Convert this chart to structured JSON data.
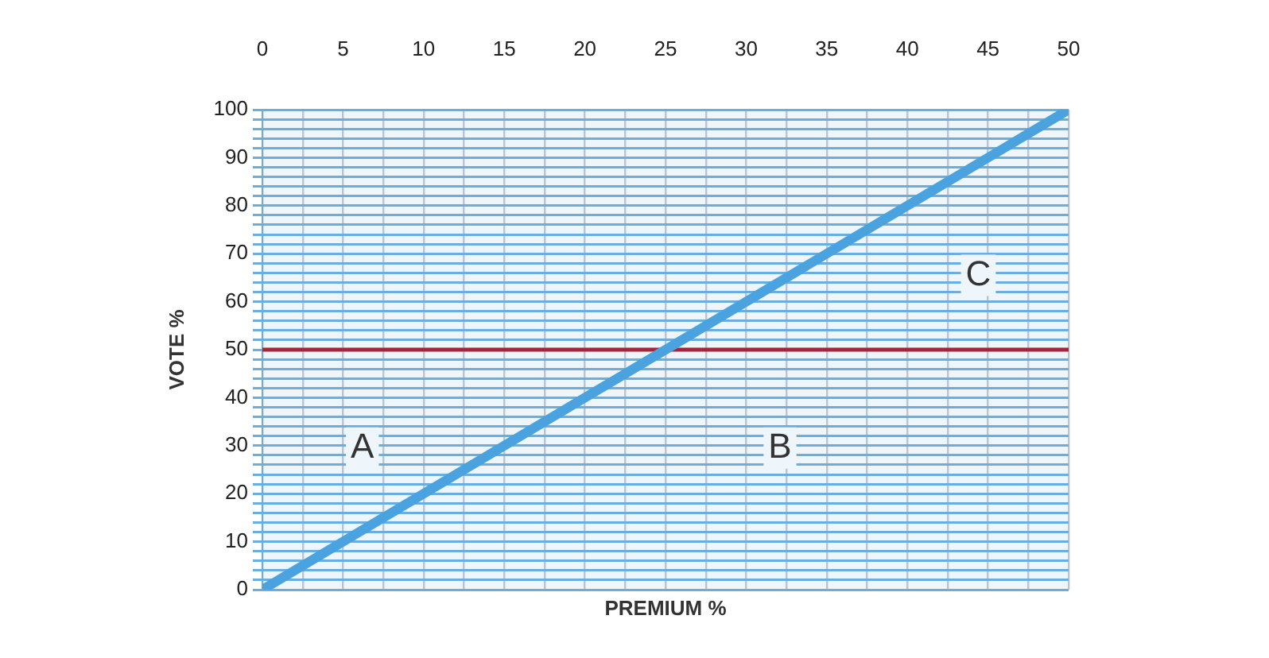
{
  "chart_data": {
    "type": "line",
    "xlabel": "PREMIUM %",
    "ylabel": "VOTE %",
    "xlim": [
      0,
      50
    ],
    "ylim": [
      0,
      100
    ],
    "xticks": [
      0,
      {
        "value": 2.5,
        "label": null
      },
      5,
      {
        "value": 7.5,
        "label": null
      },
      10,
      {
        "value": 12.5,
        "label": null
      },
      15,
      {
        "value": 17.5,
        "label": null
      },
      20,
      {
        "value": 22.5,
        "label": null
      },
      25,
      {
        "value": 27.5,
        "label": null
      },
      30,
      {
        "value": 32.5,
        "label": null
      },
      35,
      {
        "value": 37.5,
        "label": null
      },
      40,
      {
        "value": 42.5,
        "label": null
      },
      45,
      {
        "value": 47.5,
        "label": null
      },
      50
    ],
    "yticks": [
      0,
      {
        "value": 2,
        "label": null
      },
      {
        "value": 4,
        "label": null
      },
      {
        "value": 6,
        "label": null
      },
      {
        "value": 8,
        "label": null
      },
      10,
      {
        "value": 12,
        "label": null
      },
      {
        "value": 14,
        "label": null
      },
      {
        "value": 16,
        "label": null
      },
      {
        "value": 18,
        "label": null
      },
      20,
      {
        "value": 22,
        "label": null
      },
      {
        "value": 24,
        "label": null
      },
      {
        "value": 26,
        "label": null
      },
      {
        "value": 28,
        "label": null
      },
      30,
      {
        "value": 32,
        "label": null
      },
      {
        "value": 34,
        "label": null
      },
      {
        "value": 36,
        "label": null
      },
      {
        "value": 38,
        "label": null
      },
      40,
      {
        "value": 42,
        "label": null
      },
      {
        "value": 44,
        "label": null
      },
      {
        "value": 46,
        "label": null
      },
      {
        "value": 48,
        "label": null
      },
      50,
      {
        "value": 52,
        "label": null
      },
      {
        "value": 54,
        "label": null
      },
      {
        "value": 56,
        "label": null
      },
      {
        "value": 58,
        "label": null
      },
      60,
      {
        "value": 62,
        "label": null
      },
      {
        "value": 64,
        "label": null
      },
      {
        "value": 66,
        "label": null
      },
      {
        "value": 68,
        "label": null
      },
      70,
      {
        "value": 72,
        "label": null
      },
      {
        "value": 74,
        "label": null
      },
      {
        "value": 76,
        "label": null
      },
      {
        "value": 78,
        "label": null
      },
      80,
      {
        "value": 82,
        "label": null
      },
      {
        "value": 84,
        "label": null
      },
      {
        "value": 86,
        "label": null
      },
      {
        "value": 88,
        "label": null
      },
      90,
      {
        "value": 92,
        "label": null
      },
      {
        "value": 94,
        "label": null
      },
      {
        "value": 96,
        "label": null
      },
      {
        "value": 98,
        "label": null
      },
      100
    ],
    "grid": true,
    "marker": "none",
    "line_style": "solid",
    "series": [
      {
        "color": "#4aa3df",
        "x": [
          0,
          50
        ],
        "values": [
          0,
          100
        ]
      }
    ],
    "ref_lines": [
      {
        "axis": "y",
        "value": 50,
        "color": "#a3263c"
      }
    ],
    "annotations": [
      "A",
      "B",
      "C"
    ]
  }
}
